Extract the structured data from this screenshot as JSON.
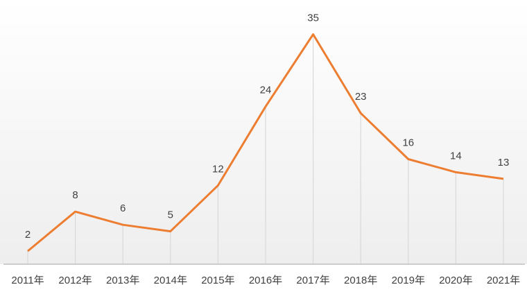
{
  "chart_data": {
    "type": "line",
    "title": "",
    "xlabel": "",
    "ylabel": "",
    "categories": [
      "2011年",
      "2012年",
      "2013年",
      "2014年",
      "2015年",
      "2016年",
      "2017年",
      "2018年",
      "2019年",
      "2020年",
      "2021年"
    ],
    "series": [
      {
        "values": [
          2,
          8,
          6,
          5,
          12,
          24,
          35,
          23,
          16,
          14,
          13
        ]
      }
    ],
    "ylim": [
      0,
      37
    ],
    "grid": false,
    "drop_lines": true,
    "data_labels": true,
    "colors": {
      "line": "#ED7D31",
      "drop_line": "#D9D9D9",
      "axis": "#BFBFBF",
      "label": "#404040"
    }
  }
}
